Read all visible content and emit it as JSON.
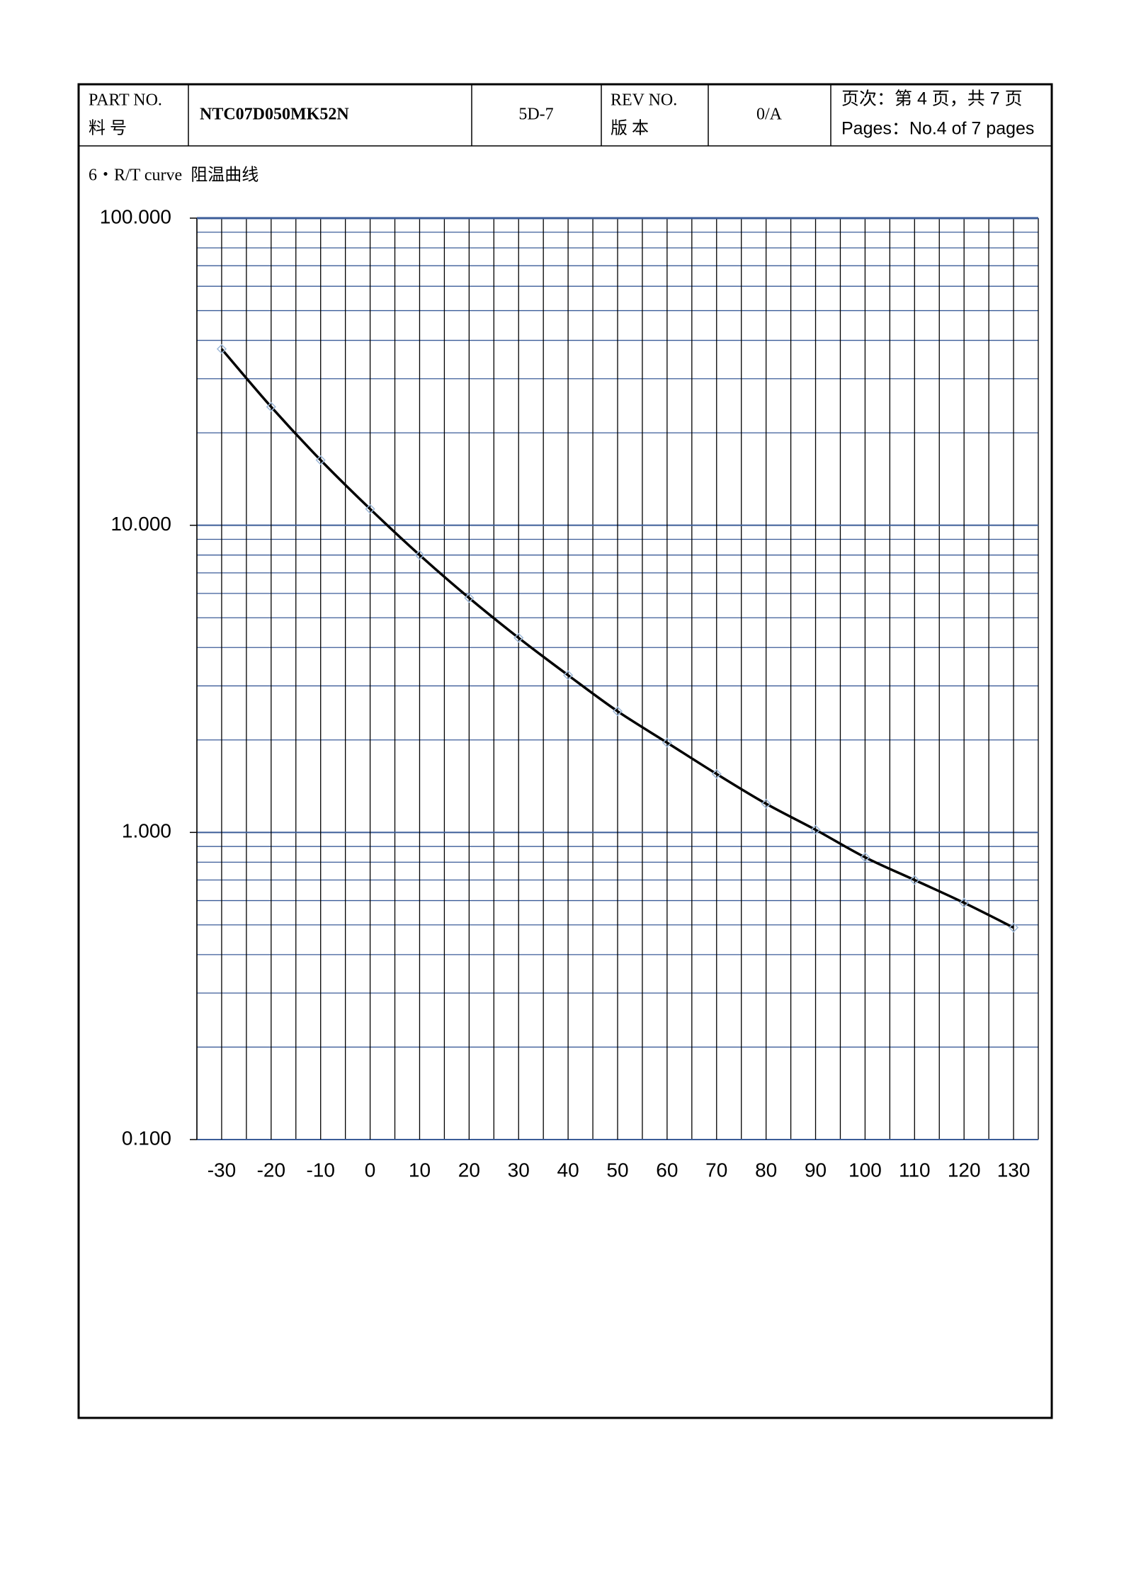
{
  "header": {
    "part_label": "PART NO.",
    "part_label_cn": "料 号",
    "part_no": "NTC07D050MK52N",
    "model": "5D-7",
    "rev_label": "REV NO.",
    "rev_label_cn": "版 本",
    "rev": "0/A",
    "page_cn": "页次：第 4 页，共 7 页",
    "page_en": "Pages：No.4 of 7 pages"
  },
  "section_title": "6・R/T curve  阻温曲线",
  "chart_data": {
    "type": "line",
    "x": [
      -30,
      -20,
      -10,
      0,
      10,
      20,
      30,
      40,
      50,
      60,
      70,
      80,
      90,
      100,
      110,
      120,
      130
    ],
    "values": [
      37.5,
      24.3,
      16.3,
      11.3,
      8.0,
      5.8,
      4.3,
      3.25,
      2.48,
      1.96,
      1.55,
      1.24,
      1.02,
      0.83,
      0.7,
      0.59,
      0.49
    ],
    "color": "#000000",
    "marker_color": "#9db8d8",
    "xlim": [
      -35,
      135
    ],
    "xticks": [
      -30,
      -20,
      -10,
      0,
      10,
      20,
      30,
      40,
      50,
      60,
      70,
      80,
      90,
      100,
      110,
      120,
      130
    ],
    "xminorticks": [
      -35,
      -25,
      -15,
      -5,
      5,
      15,
      25,
      35,
      45,
      55,
      65,
      75,
      85,
      95,
      105,
      115,
      125,
      135
    ],
    "ylim": [
      0.1,
      100
    ],
    "log_y": true,
    "yticks": [
      {
        "value": 0.1,
        "label": "0.100"
      },
      {
        "value": 1,
        "label": "1.000"
      },
      {
        "value": 10,
        "label": "10.000"
      },
      {
        "value": 100,
        "label": "100.000"
      }
    ],
    "yminorticks": [
      0.2,
      0.3,
      0.4,
      0.5,
      0.6,
      0.7,
      0.8,
      0.9,
      2,
      3,
      4,
      5,
      6,
      7,
      8,
      9,
      20,
      30,
      40,
      50,
      60,
      70,
      80,
      90
    ],
    "grid": true,
    "grid_color_y": "#3b5c98",
    "grid_color_x": "#000000"
  }
}
